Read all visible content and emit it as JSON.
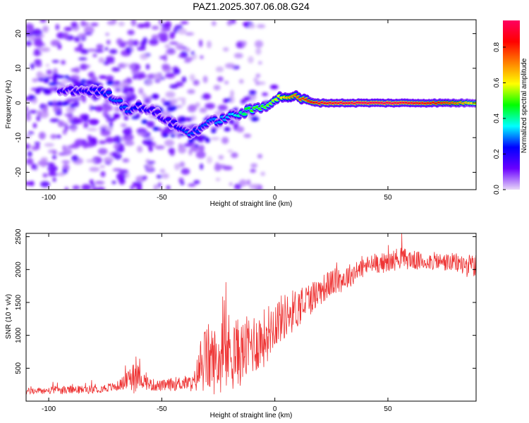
{
  "chart_data": [
    {
      "type": "heatmap",
      "title": "PAZ1.2025.307.06.08.G24",
      "xlabel": "Height of straight line (km)",
      "ylabel": "Frequency (Hz)",
      "xlim": [
        -110,
        89
      ],
      "ylim": [
        -25,
        24
      ],
      "x_ticks": [
        -100,
        -50,
        0,
        50
      ],
      "x_tick_labels": [
        "-100",
        "-50",
        "0",
        "50"
      ],
      "y_ticks": [
        -20,
        -10,
        0,
        10,
        20
      ],
      "y_tick_labels": [
        "-20",
        "-10",
        "0",
        "10",
        "20"
      ],
      "colorbar": {
        "label": "Normalized spectral amplitude",
        "range": [
          0,
          0.95
        ],
        "ticks": [
          0.0,
          0.2,
          0.4,
          0.6,
          0.8
        ],
        "tick_labels": [
          "0.0",
          "0.2",
          "0.4",
          "0.6",
          "0.8"
        ],
        "colormap": [
          "#e8d8f8",
          "#6a00ff",
          "#0000ff",
          "#00ffff",
          "#00ff00",
          "#ffff00",
          "#ff8000",
          "#ff0000",
          "#ff0060"
        ]
      },
      "ridge": {
        "x": [
          -90,
          -80,
          -75,
          -70,
          -65,
          -60,
          -55,
          -50,
          -45,
          -40,
          -38,
          -35,
          -30,
          -25,
          -20,
          -15,
          -10,
          -5,
          0,
          5,
          10,
          15,
          20,
          30,
          40,
          50,
          60,
          70,
          80,
          89
        ],
        "freq": [
          3.5,
          3.5,
          3,
          1,
          -2,
          -1,
          -2,
          -4,
          -6,
          -8,
          -9,
          -8,
          -6,
          -5,
          -4,
          -3,
          -2,
          -1,
          1,
          2,
          1.5,
          0.5,
          0,
          0,
          0,
          0,
          0,
          0,
          0,
          0
        ],
        "amplitude": [
          0.18,
          0.22,
          0.25,
          0.28,
          0.27,
          0.22,
          0.2,
          0.18,
          0.2,
          0.25,
          0.3,
          0.25,
          0.28,
          0.3,
          0.32,
          0.4,
          0.5,
          0.5,
          0.55,
          0.65,
          0.75,
          0.8,
          0.88,
          0.92,
          0.95,
          0.95,
          0.9,
          0.85,
          0.75,
          0.6
        ]
      }
    },
    {
      "type": "line",
      "title": "",
      "xlabel": "Height of straight line (km)",
      "ylabel": "SNR (10 * v/v)",
      "xlim": [
        -110,
        89
      ],
      "ylim": [
        0,
        2550
      ],
      "x_ticks": [
        -100,
        -50,
        0,
        50
      ],
      "x_tick_labels": [
        "-100",
        "-50",
        "0",
        "50"
      ],
      "y_ticks": [
        500,
        1000,
        1500,
        2000,
        2500
      ],
      "y_tick_labels": [
        "500",
        "1000",
        "1500",
        "2000",
        "2500"
      ],
      "line_color": "#ee3333",
      "series": [
        {
          "name": "SNR",
          "x": [
            -110,
            -100,
            -90,
            -80,
            -70,
            -65,
            -63,
            -60,
            -55,
            -50,
            -45,
            -40,
            -36,
            -33,
            -30,
            -25,
            -20,
            -15,
            -10,
            -5,
            0,
            5,
            10,
            15,
            20,
            25,
            30,
            35,
            40,
            45,
            50,
            55,
            60,
            65,
            70,
            75,
            80,
            85,
            89
          ],
          "mean": [
            150,
            160,
            170,
            180,
            220,
            320,
            420,
            360,
            250,
            230,
            260,
            280,
            260,
            520,
            650,
            600,
            760,
            720,
            880,
            950,
            1200,
            1300,
            1420,
            1550,
            1680,
            1800,
            1850,
            1950,
            2050,
            2100,
            2100,
            2180,
            2150,
            2120,
            2130,
            2110,
            2100,
            2060,
            2050
          ],
          "amp": [
            70,
            80,
            90,
            90,
            100,
            180,
            500,
            220,
            140,
            120,
            150,
            160,
            180,
            550,
            800,
            700,
            900,
            700,
            700,
            650,
            550,
            500,
            450,
            380,
            320,
            300,
            280,
            250,
            220,
            220,
            220,
            250,
            220,
            200,
            200,
            200,
            220,
            250,
            250
          ]
        }
      ]
    }
  ]
}
